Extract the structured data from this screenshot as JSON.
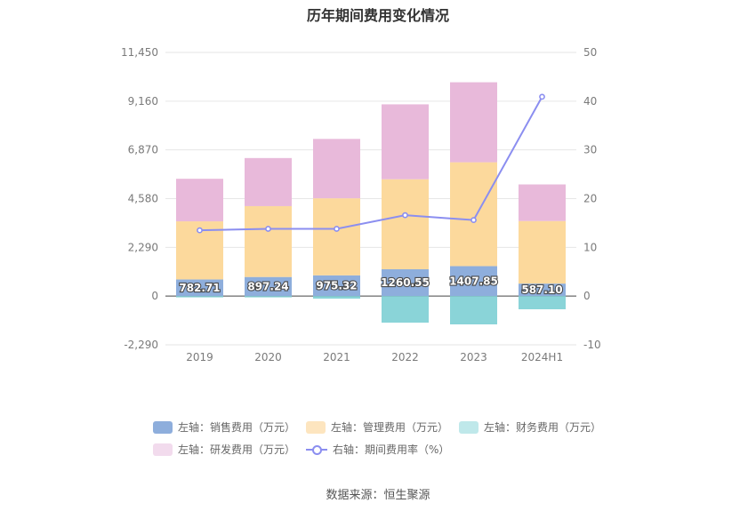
{
  "chart_data": {
    "type": "bar",
    "title": "历年期间费用变化情况",
    "categories": [
      "2019",
      "2020",
      "2021",
      "2022",
      "2023",
      "2024H1"
    ],
    "left_axis": {
      "ticks": [
        "11,450",
        "9,160",
        "6,870",
        "4,580",
        "2,290",
        "0",
        "-2,290"
      ],
      "ylim": [
        -2290,
        11450
      ]
    },
    "right_axis": {
      "ticks": [
        "50",
        "40",
        "30",
        "20",
        "10",
        "0",
        "-10"
      ],
      "ylim": [
        -10,
        50
      ]
    },
    "stacked": true,
    "series": [
      {
        "name": "左轴：销售费用（万元）",
        "axis": "left",
        "color": "#8eaedc",
        "values": [
          782.71,
          897.24,
          975.32,
          1260.55,
          1407.85,
          587.1
        ],
        "labels": [
          "782.71",
          "897.24",
          "975.32",
          "1260.55",
          "1407.85",
          "587.10"
        ]
      },
      {
        "name": "左轴：管理费用（万元）",
        "axis": "left",
        "color": "#fcd99c",
        "values": [
          2730,
          3330,
          3620,
          4230,
          4880,
          2940
        ]
      },
      {
        "name": "左轴：财务费用（万元）",
        "axis": "left",
        "color": "#8ad4d8",
        "values": [
          -60,
          -60,
          -120,
          -1250,
          -1330,
          -620
        ]
      },
      {
        "name": "左轴：研发费用（万元）",
        "axis": "left",
        "color": "#e8b9da",
        "values": [
          2000,
          2260,
          2790,
          3520,
          3760,
          1720
        ]
      },
      {
        "name": "右轴：期间费用率（%）",
        "axis": "right",
        "type": "line",
        "color": "#8b8ef0",
        "values": [
          13.5,
          13.8,
          13.8,
          16.6,
          15.6,
          40.9
        ]
      }
    ],
    "legend_position": "bottom",
    "grid": true
  },
  "legend_items": [
    {
      "label": "左轴：销售费用（万元）",
      "color": "#8eaedc",
      "kind": "box"
    },
    {
      "label": "左轴：管理费用（万元）",
      "color": "#fde5bf",
      "kind": "box"
    },
    {
      "label": "左轴：财务费用（万元）",
      "color": "#bfe8ea",
      "kind": "box"
    },
    {
      "label": "左轴：研发费用（万元）",
      "color": "#f2dbed",
      "kind": "box"
    },
    {
      "label": "右轴：期间费用率（%）",
      "color": "#8b8ef0",
      "kind": "line"
    }
  ],
  "source": "数据来源：恒生聚源"
}
